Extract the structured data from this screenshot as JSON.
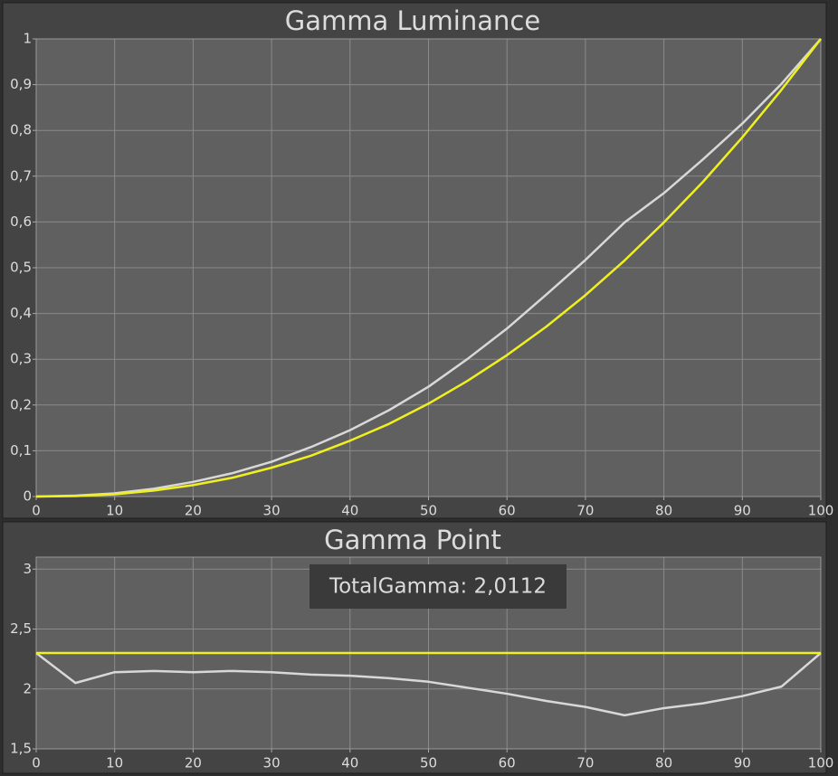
{
  "chart_data": [
    {
      "type": "line",
      "title": "Gamma Luminance",
      "x": [
        0,
        5,
        10,
        15,
        20,
        25,
        30,
        35,
        40,
        45,
        50,
        55,
        60,
        65,
        70,
        75,
        80,
        85,
        90,
        95,
        100
      ],
      "series": [
        {
          "color": "#d8d8d8",
          "values": [
            0,
            0.002,
            0.007,
            0.017,
            0.032,
            0.051,
            0.076,
            0.108,
            0.145,
            0.189,
            0.24,
            0.301,
            0.367,
            0.441,
            0.517,
            0.599,
            0.663,
            0.737,
            0.815,
            0.902,
            1
          ]
        },
        {
          "color": "#f0f020",
          "values": [
            0,
            0.001,
            0.005,
            0.013,
            0.025,
            0.041,
            0.063,
            0.089,
            0.122,
            0.159,
            0.203,
            0.253,
            0.309,
            0.371,
            0.44,
            0.516,
            0.599,
            0.688,
            0.785,
            0.889,
            1
          ]
        }
      ],
      "xlim": [
        0,
        100
      ],
      "xticks": [
        0,
        10,
        20,
        30,
        40,
        50,
        60,
        70,
        80,
        90,
        100
      ],
      "ylim": [
        0,
        1
      ],
      "yticks": [
        0,
        {
          "value": 0.1,
          "label": "0,1"
        },
        {
          "value": 0.2,
          "label": "0,2"
        },
        {
          "value": 0.3,
          "label": "0,3"
        },
        {
          "value": 0.4,
          "label": "0,4"
        },
        {
          "value": 0.5,
          "label": "0,5"
        },
        {
          "value": 0.6,
          "label": "0,6"
        },
        {
          "value": 0.7,
          "label": "0,7"
        },
        {
          "value": 0.8,
          "label": "0,8"
        },
        {
          "value": 0.9,
          "label": "0,9"
        },
        1
      ],
      "grid": true
    },
    {
      "type": "line",
      "title": "Gamma Point",
      "annotation": "TotalGamma: 2,0112",
      "x": [
        0,
        5,
        10,
        15,
        20,
        25,
        30,
        35,
        40,
        45,
        50,
        55,
        60,
        65,
        70,
        75,
        80,
        85,
        90,
        95,
        100
      ],
      "series": [
        {
          "color": "#d8d8d8",
          "values": [
            2.3,
            2.05,
            2.14,
            2.15,
            2.14,
            2.15,
            2.14,
            2.12,
            2.11,
            2.09,
            2.06,
            2.01,
            1.96,
            1.9,
            1.85,
            1.78,
            1.84,
            1.88,
            1.94,
            2.02,
            2.3
          ]
        },
        {
          "color": "#f0f020",
          "values": [
            2.3,
            2.3,
            2.3,
            2.3,
            2.3,
            2.3,
            2.3,
            2.3,
            2.3,
            2.3,
            2.3,
            2.3,
            2.3,
            2.3,
            2.3,
            2.3,
            2.3,
            2.3,
            2.3,
            2.3,
            2.3
          ]
        }
      ],
      "xlim": [
        0,
        100
      ],
      "xticks": [
        0,
        10,
        20,
        30,
        40,
        50,
        60,
        70,
        80,
        90,
        100
      ],
      "ylim": [
        1.5,
        3.1
      ],
      "yticks": [
        {
          "value": 1.5,
          "label": "1,5"
        },
        2,
        {
          "value": 2.5,
          "label": "2,5"
        },
        3
      ],
      "grid": true
    }
  ]
}
